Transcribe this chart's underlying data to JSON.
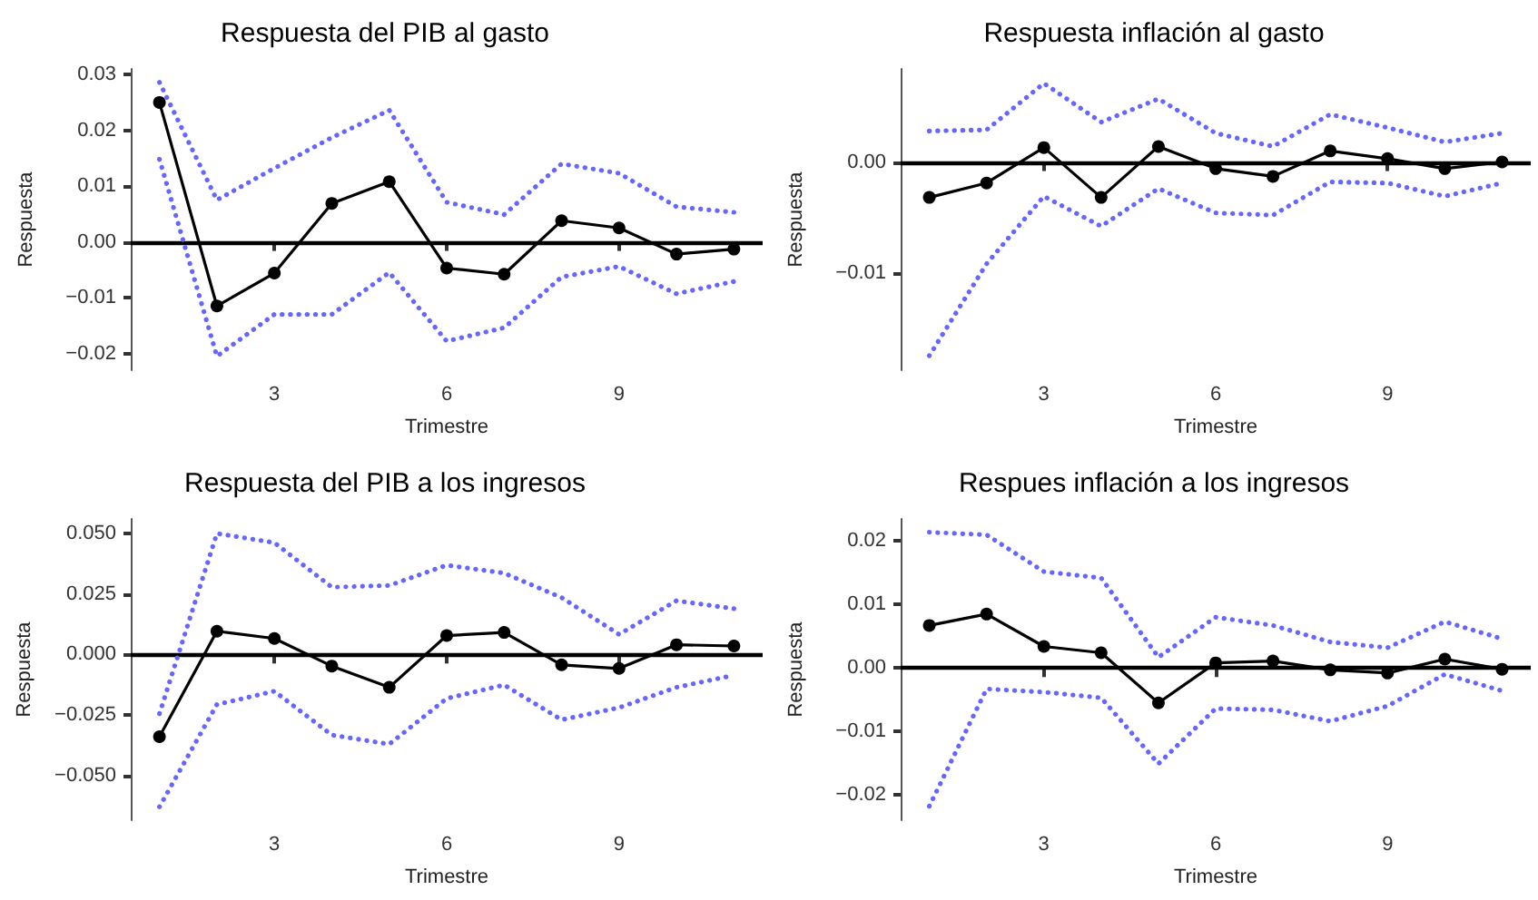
{
  "chart_data": [
    {
      "type": "line",
      "title": "Respuesta del PIB al gasto",
      "xlabel": "Trimestre",
      "ylabel": "Respuesta",
      "x": [
        1,
        2,
        3,
        4,
        5,
        6,
        7,
        8,
        9,
        10,
        11
      ],
      "xlim": [
        0.5,
        11.5
      ],
      "xticks": [
        3,
        6,
        9
      ],
      "ylim": [
        -0.023,
        0.031
      ],
      "yticks": [
        {
          "value": -0.02,
          "label": "−0.02"
        },
        {
          "value": -0.01,
          "label": "−0.01"
        },
        {
          "value": 0,
          "label": "0.00"
        },
        {
          "value": 0.01,
          "label": "0.01"
        },
        {
          "value": 0.02,
          "label": "0.02"
        },
        {
          "value": 0.03,
          "label": "0.03"
        }
      ],
      "ref_lines": [
        {
          "axis": "y",
          "value": 0,
          "color": "#000000"
        }
      ],
      "series": [
        {
          "color": "#000000",
          "marker": "circle",
          "line_style": "solid",
          "values": [
            0.025,
            -0.0115,
            -0.0056,
            0.0069,
            0.0108,
            -0.0047,
            -0.0058,
            0.0038,
            0.0025,
            -0.0022,
            -0.0013
          ]
        },
        {
          "color": "#6666ff",
          "marker": "none",
          "line_style": "dotted",
          "values": [
            0.0286,
            0.0075,
            0.0132,
            0.0187,
            0.0236,
            0.0071,
            0.0049,
            0.014,
            0.0123,
            0.0063,
            0.0053
          ]
        },
        {
          "color": "#6666ff",
          "marker": "none",
          "line_style": "dotted",
          "values": [
            0.0148,
            -0.0205,
            -0.013,
            -0.013,
            -0.0055,
            -0.0178,
            -0.0154,
            -0.0063,
            -0.0044,
            -0.0093,
            -0.0071
          ]
        }
      ]
    },
    {
      "type": "line",
      "title": "Respuesta inflación al gasto",
      "xlabel": "Trimestre",
      "ylabel": "Respuesta",
      "x": [
        1,
        2,
        3,
        4,
        5,
        6,
        7,
        8,
        9,
        10,
        11
      ],
      "xlim": [
        0.5,
        11.5
      ],
      "xticks": [
        3,
        6,
        9
      ],
      "ylim": [
        -0.0188,
        0.0084
      ],
      "yticks": [
        {
          "value": -0.01,
          "label": "−0.01"
        },
        {
          "value": 0,
          "label": "0.00"
        }
      ],
      "ref_lines": [
        {
          "axis": "y",
          "value": 0,
          "color": "#000000"
        }
      ],
      "series": [
        {
          "color": "#000000",
          "marker": "circle",
          "line_style": "solid",
          "values": [
            -0.0032,
            -0.0019,
            0.0013,
            -0.0032,
            0.0014,
            -0.0006,
            -0.0013,
            0.001,
            0.0003,
            -0.0006,
            0.0
          ]
        },
        {
          "color": "#6666ff",
          "marker": "none",
          "line_style": "dotted",
          "values": [
            0.0028,
            0.0029,
            0.0071,
            0.0036,
            0.0057,
            0.0026,
            0.0014,
            0.0043,
            0.0031,
            0.0018,
            0.0026
          ]
        },
        {
          "color": "#6666ff",
          "marker": "none",
          "line_style": "dotted",
          "values": [
            -0.0175,
            -0.0092,
            -0.0031,
            -0.0058,
            -0.0024,
            -0.0046,
            -0.0048,
            -0.0018,
            -0.0019,
            -0.0031,
            -0.0019
          ]
        }
      ]
    },
    {
      "type": "line",
      "title": "Respuesta del PIB a los ingresos",
      "xlabel": "Trimestre",
      "ylabel": "Respuesta",
      "x": [
        1,
        2,
        3,
        4,
        5,
        6,
        7,
        8,
        9,
        10,
        11
      ],
      "xlim": [
        0.5,
        11.5
      ],
      "xticks": [
        3,
        6,
        9
      ],
      "ylim": [
        -0.0685,
        0.056
      ],
      "yticks": [
        {
          "value": -0.05,
          "label": "−0.050"
        },
        {
          "value": -0.025,
          "label": "−0.025"
        },
        {
          "value": 0,
          "label": "0.000"
        },
        {
          "value": 0.025,
          "label": "0.025"
        },
        {
          "value": 0.05,
          "label": "0.050"
        }
      ],
      "ref_lines": [
        {
          "axis": "y",
          "value": 0,
          "color": "#000000"
        }
      ],
      "series": [
        {
          "color": "#000000",
          "marker": "circle",
          "line_style": "solid",
          "values": [
            -0.034,
            0.0096,
            0.0066,
            -0.0048,
            -0.0136,
            0.0078,
            0.0091,
            -0.0043,
            -0.0058,
            0.004,
            0.0035
          ]
        },
        {
          "color": "#6666ff",
          "marker": "none",
          "line_style": "dotted",
          "values": [
            -0.0245,
            0.05,
            0.0462,
            0.0278,
            0.0285,
            0.0369,
            0.0336,
            0.0235,
            0.0083,
            0.0222,
            0.0189
          ]
        },
        {
          "color": "#6666ff",
          "marker": "none",
          "line_style": "dotted",
          "values": [
            -0.063,
            -0.0207,
            -0.0152,
            -0.0333,
            -0.0371,
            -0.0182,
            -0.0126,
            -0.027,
            -0.022,
            -0.0136,
            -0.0086
          ]
        }
      ]
    },
    {
      "type": "line",
      "title": "Respues inflación a los ingresos",
      "xlabel": "Trimestre",
      "ylabel": "Respuesta",
      "x": [
        1,
        2,
        3,
        4,
        5,
        6,
        7,
        8,
        9,
        10,
        11
      ],
      "xlim": [
        0.5,
        11.5
      ],
      "xticks": [
        3,
        6,
        9
      ],
      "ylim": [
        -0.024,
        0.0235
      ],
      "yticks": [
        {
          "value": -0.02,
          "label": "−0.02"
        },
        {
          "value": -0.01,
          "label": "−0.01"
        },
        {
          "value": 0,
          "label": "0.00"
        },
        {
          "value": 0.01,
          "label": "0.01"
        },
        {
          "value": 0.02,
          "label": "0.02"
        }
      ],
      "ref_lines": [
        {
          "axis": "y",
          "value": 0,
          "color": "#000000"
        }
      ],
      "series": [
        {
          "color": "#000000",
          "marker": "circle",
          "line_style": "solid",
          "values": [
            0.0067,
            0.0085,
            0.0034,
            0.0024,
            -0.0055,
            0.0008,
            0.0011,
            -0.0003,
            -0.0008,
            0.0014,
            -0.0002
          ]
        },
        {
          "color": "#6666ff",
          "marker": "none",
          "line_style": "dotted",
          "values": [
            0.0214,
            0.021,
            0.0152,
            0.0142,
            0.0017,
            0.008,
            0.0067,
            0.0041,
            0.0032,
            0.0073,
            0.0046
          ]
        },
        {
          "color": "#6666ff",
          "marker": "none",
          "line_style": "dotted",
          "values": [
            -0.0218,
            -0.0033,
            -0.0038,
            -0.0047,
            -0.0151,
            -0.0064,
            -0.0066,
            -0.0084,
            -0.006,
            -0.001,
            -0.0036
          ]
        }
      ]
    }
  ]
}
